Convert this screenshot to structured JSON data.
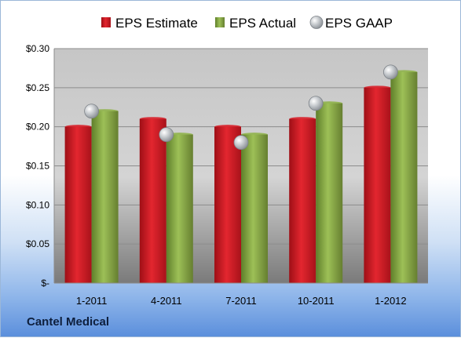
{
  "chart_data": {
    "type": "bar",
    "categories": [
      "1-2011",
      "4-2011",
      "7-2011",
      "10-2011",
      "1-2012"
    ],
    "series": [
      {
        "name": "EPS Estimate",
        "values": [
          0.2,
          0.21,
          0.2,
          0.21,
          0.25
        ],
        "color": "#d8202a"
      },
      {
        "name": "EPS Actual",
        "values": [
          0.22,
          0.19,
          0.19,
          0.23,
          0.27
        ],
        "color": "#8fb24a"
      }
    ],
    "overlay_series": {
      "name": "EPS GAAP",
      "type": "scatter",
      "values": [
        0.22,
        0.19,
        0.18,
        0.23,
        0.27
      ],
      "color": "#b9bec4"
    },
    "ylim": [
      0,
      0.3
    ],
    "yticks": [
      0,
      0.05,
      0.1,
      0.15,
      0.2,
      0.25,
      0.3
    ],
    "ytick_labels": [
      "$-",
      "$0.05",
      "$0.10",
      "$0.15",
      "$0.20",
      "$0.25",
      "$0.30"
    ],
    "grid": true,
    "legend_position": "top",
    "title": "",
    "xlabel": "",
    "ylabel": ""
  },
  "footer": {
    "company": "Cantel Medical"
  }
}
